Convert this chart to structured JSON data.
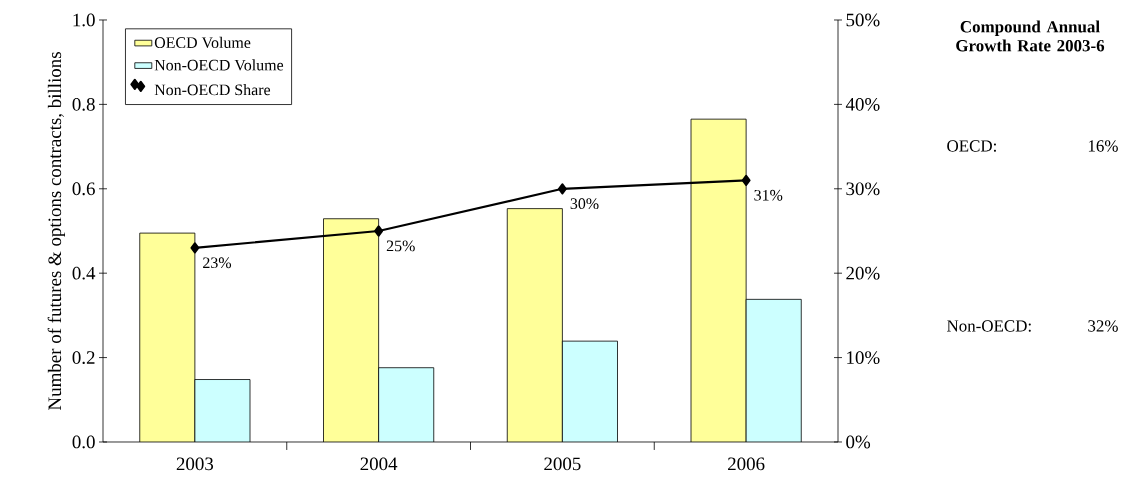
{
  "chart_data": {
    "type": "bar",
    "categories": [
      "2003",
      "2004",
      "2005",
      "2006"
    ],
    "ylabel": "Number of futures & options contracts, billions",
    "series": [
      {
        "name": "OECD Volume",
        "color": "#ffff99",
        "values": [
          0.495,
          0.529,
          0.553,
          0.765
        ]
      },
      {
        "name": "Non-OECD Volume",
        "color": "#ccffff",
        "values": [
          0.148,
          0.176,
          0.239,
          0.338
        ]
      },
      {
        "name": "Non-OECD Share",
        "type": "line",
        "axis": "y2",
        "color": "#000000",
        "values": [
          23,
          25,
          30,
          31
        ],
        "value_labels": [
          "23%",
          "25%",
          "30%",
          "31%"
        ],
        "marker": "diamond",
        "line_style": "solid"
      }
    ],
    "ylim": [
      0,
      1
    ],
    "yticks": [
      {
        "value": 0,
        "label": "0.0"
      },
      0.2,
      0.4,
      0.6,
      0.8,
      {
        "value": 1,
        "label": "1.0"
      }
    ],
    "y2lim": [
      0,
      50
    ],
    "y2ticks": [
      {
        "value": 0,
        "label": "0%"
      },
      {
        "value": 10,
        "label": "10%"
      },
      {
        "value": 20,
        "label": "20%"
      },
      {
        "value": 30,
        "label": "30%"
      },
      {
        "value": 40,
        "label": "40%"
      },
      {
        "value": 50,
        "label": "50%"
      }
    ],
    "legend": "top left",
    "annotations": [
      "Compound Annual Growth Rate 2003-6",
      "OECD:",
      "16%",
      "Non-OECD:",
      "32%"
    ]
  }
}
